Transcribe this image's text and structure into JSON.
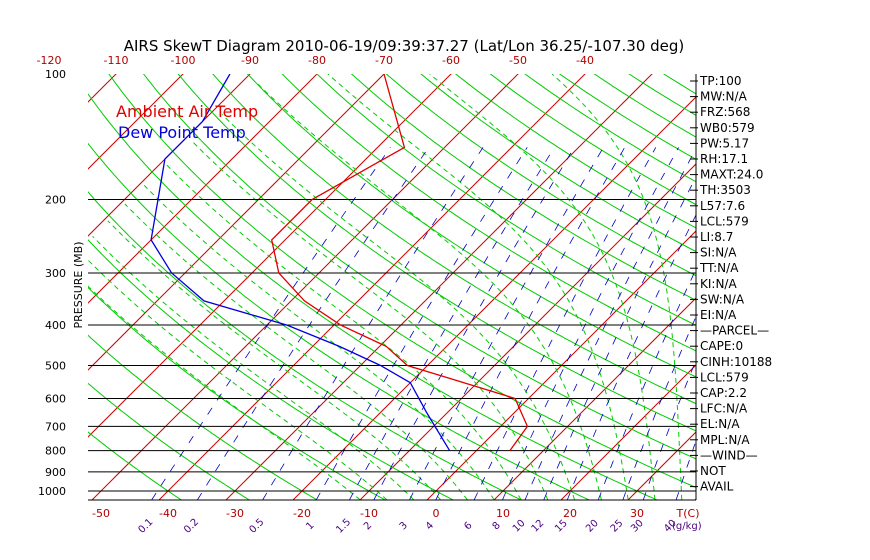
{
  "title": "AIRS SkewT Diagram 2010-06-19/09:39:37.27 (Lat/Lon 36.25/-107.30 deg)",
  "legend": [
    {
      "label": "Ambient Air Temp",
      "color": "#e00000"
    },
    {
      "label": "Dew Point Temp",
      "color": "#0000e0"
    }
  ],
  "colors": {
    "isotherm": "#cc0000",
    "dry_adiabat": "#00cc00",
    "moist_adiabat": "#00cc00",
    "mixing_ratio": "#0000c0",
    "tick_label_bottom": "#b00000",
    "tick_label_top": "#b00000",
    "mixing_ratio_label": "#4b0082",
    "isobar": "#000000"
  },
  "chart_data": {
    "type": "line",
    "ylabel": "PRESSURE (MB)",
    "y_scale": "log",
    "ylim": [
      1050,
      100
    ],
    "y_ticks": [
      100,
      200,
      300,
      400,
      500,
      600,
      700,
      800,
      900,
      1000
    ],
    "isobars": [
      200,
      300,
      400,
      500,
      600,
      700,
      800,
      900,
      1000
    ],
    "x_ticks_bottom": [
      -50,
      -40,
      -30,
      -20,
      -10,
      0,
      10,
      20,
      30
    ],
    "x_ticks_top": [
      -120,
      -110,
      -100,
      -90,
      -80,
      -70,
      -60,
      -50,
      -40
    ],
    "x_unit_bottom": "T(C)",
    "mixing_ratio_labels": [
      "0.1",
      "0.2",
      "0.5",
      "1",
      "1.5",
      "2",
      "3",
      "4",
      "6",
      "8",
      "10",
      "12",
      "15",
      "20",
      "25",
      "30",
      "40"
    ],
    "mixing_ratio_unit": "(g/kg)",
    "series": [
      {
        "name": "Ambient Air Temp",
        "x": [
          -70,
          -56,
          -62,
          -62,
          -56,
          -48,
          -39,
          -29,
          -23,
          -12,
          -2,
          4,
          5
        ],
        "y": [
          100,
          150,
          200,
          250,
          300,
          350,
          400,
          450,
          500,
          550,
          600,
          700,
          800
        ]
      },
      {
        "name": "Dew Point Temp",
        "x": [
          -93,
          -90,
          -90,
          -85,
          -80,
          -72,
          -63,
          -47,
          -36,
          -27,
          -20,
          -13,
          -4
        ],
        "y": [
          100,
          130,
          160,
          200,
          250,
          300,
          350,
          400,
          450,
          500,
          550,
          650,
          800
        ]
      }
    ]
  },
  "stats": [
    "TP:100",
    "MW:N/A",
    "FRZ:568",
    "WB0:579",
    "PW:5.17",
    "RH:17.1",
    "MAXT:24.0",
    "TH:3503",
    "L57:7.6",
    "LCL:579",
    "LI:8.7",
    "SI:N/A",
    "TT:N/A",
    "KI:N/A",
    "SW:N/A",
    "EI:N/A",
    "—PARCEL—",
    "CAPE:0",
    "CINH:10188",
    "LCL:579",
    "CAP:2.2",
    "LFC:N/A",
    "EL:N/A",
    "MPL:N/A",
    "—WIND—",
    "NOT",
    "AVAIL"
  ]
}
